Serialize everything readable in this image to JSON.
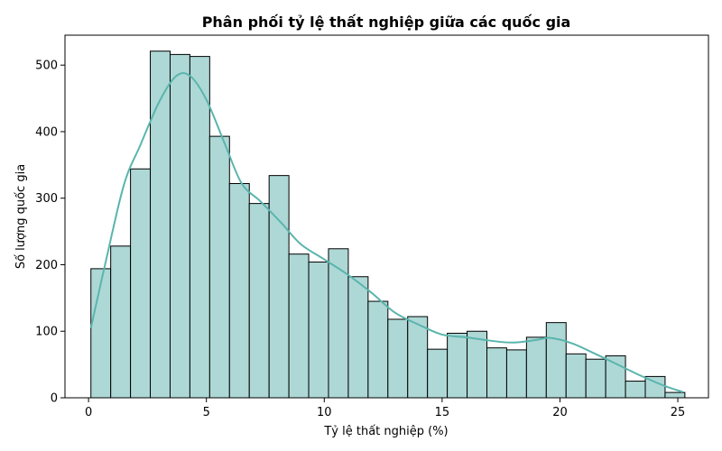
{
  "chart_data": {
    "type": "bar",
    "title": "Phân phối tỷ lệ thất nghiệp giữa các quốc gia",
    "xlabel": "Tỷ lệ thất nghiệp (%)",
    "ylabel": "Số lượng quốc gia",
    "xlim": [
      -1.0,
      26.3
    ],
    "ylim": [
      0,
      545
    ],
    "x_ticks": [
      0,
      5,
      10,
      15,
      20,
      25
    ],
    "y_ticks": [
      0,
      100,
      200,
      300,
      400,
      500
    ],
    "bin_edges": [
      0.1,
      0.94,
      1.78,
      2.62,
      3.46,
      4.3,
      5.14,
      5.98,
      6.82,
      7.66,
      8.5,
      9.34,
      10.18,
      11.02,
      11.86,
      12.7,
      13.54,
      14.38,
      15.22,
      16.06,
      16.9,
      17.74,
      18.58,
      19.42,
      20.26,
      21.1,
      21.94,
      22.78,
      23.62,
      24.46,
      25.3
    ],
    "counts": [
      194,
      228,
      344,
      521,
      516,
      513,
      393,
      322,
      292,
      334,
      216,
      204,
      224,
      182,
      145,
      118,
      122,
      73,
      97,
      100,
      75,
      72,
      91,
      113,
      66,
      58,
      63,
      25,
      32,
      8
    ],
    "kde": {
      "x": [
        0.1,
        0.7,
        1.5,
        2.2,
        3.0,
        3.7,
        4.3,
        5.0,
        5.8,
        6.5,
        7.3,
        8.2,
        9.0,
        10.0,
        11.0,
        12.0,
        13.0,
        14.0,
        15.0,
        16.0,
        17.0,
        18.0,
        19.0,
        19.6,
        20.5,
        21.5,
        22.5,
        23.5,
        24.5,
        25.2
      ],
      "y": [
        105,
        200,
        320,
        380,
        445,
        483,
        484,
        448,
        380,
        322,
        295,
        262,
        231,
        208,
        185,
        158,
        128,
        110,
        95,
        91,
        86,
        83,
        87,
        90,
        82,
        66,
        49,
        32,
        17,
        9
      ]
    },
    "colors": {
      "bar_fill": "#add8d6",
      "bar_edge": "#000000",
      "kde_line": "#5ab5ad"
    }
  }
}
